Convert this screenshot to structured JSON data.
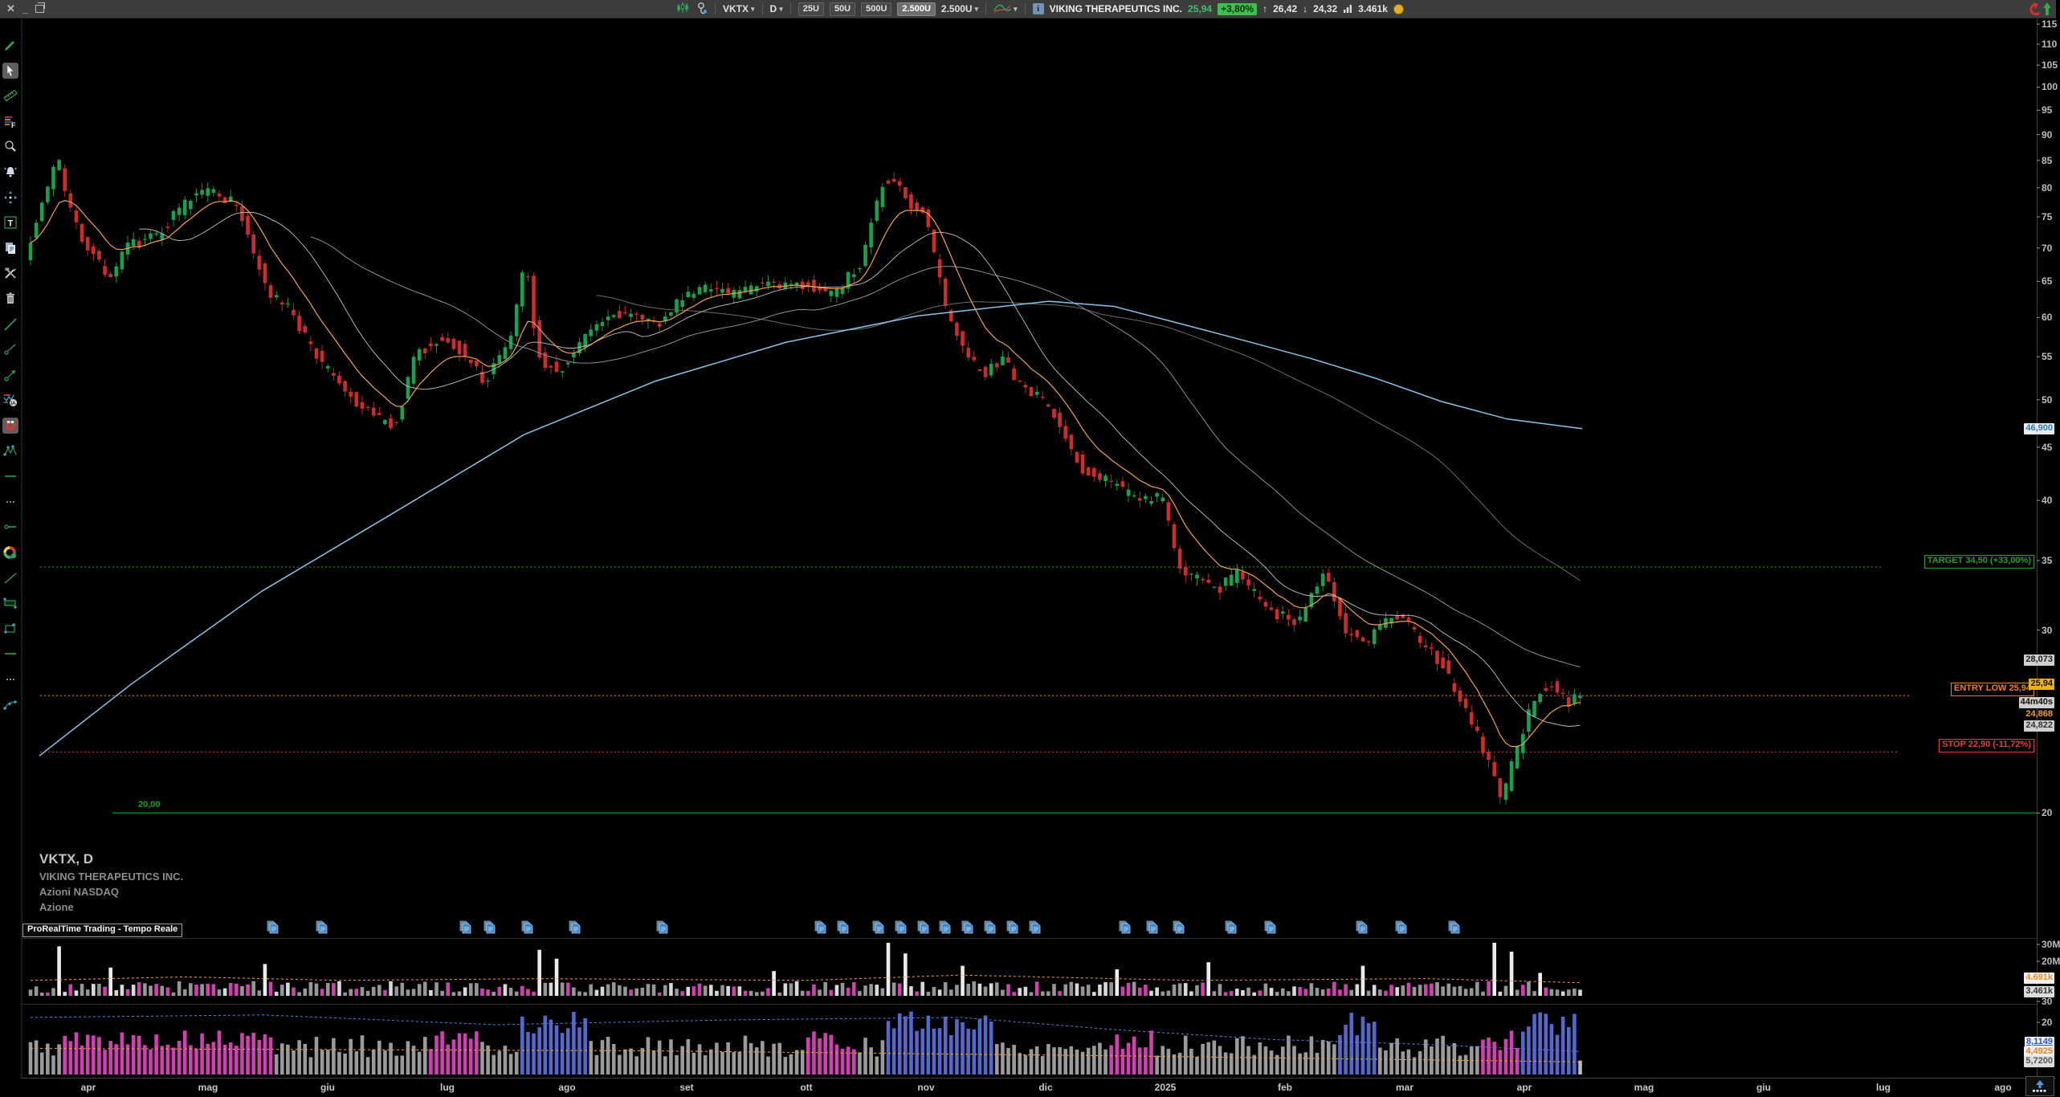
{
  "topbar": {
    "controls": {
      "close": "✕",
      "minimize": "_"
    },
    "symbol": "VKTX",
    "timeframe": "D",
    "unit_buttons": [
      "25U",
      "50U",
      "500U"
    ],
    "unit_selected": "2.500U",
    "unit_dropdown": "2.500U",
    "info_glyph": "i",
    "instrument_name": "VIKING THERAPEUTICS INC.",
    "last_price": "25,94",
    "change_pct": "+3,80%",
    "up_glyph": "↑",
    "day_high": "26,42",
    "down_glyph": "↓",
    "day_low": "24,32",
    "volume": "3.461k",
    "icons": [
      "candlestick-icon",
      "screener-icon",
      "chart-style-icon",
      "info-icon",
      "volume-bars-icon",
      "market-status-icon",
      "sell-arrow-icon",
      "buy-arrow-icon"
    ],
    "colors": {
      "up_green": "#3ebf4e",
      "last_green": "#3ec06c",
      "status_yellow": "#e3af24"
    }
  },
  "sidebar": {
    "tools": [
      "draw-pencil",
      "select-cursor",
      "measure-ruler",
      "orders-panel",
      "zoom",
      "alerts-bell",
      "pan-move",
      "text-note",
      "duplicate",
      "settings-tools",
      "delete-trash",
      "trend-line",
      "segment",
      "arrow-line",
      "ai-analysis",
      "magnet-snap",
      "zigzag-points",
      "horizontal-line",
      "more-options",
      "horizontal-segment",
      "color-palette",
      "oblique-line",
      "price-range",
      "rectangle",
      "horizontal-line-2",
      "more-options-2",
      "arc"
    ],
    "selected": [
      1,
      15
    ]
  },
  "chart": {
    "instrument_block": {
      "line1": "VKTX, D",
      "line2": "VIKING THERAPEUTICS INC.",
      "line3": "Azioni NASDAQ",
      "line4": "Azione"
    },
    "platform_label": "ProRealTime Trading - Tempo Reale",
    "levels": {
      "target": {
        "label": "TARGET 34,50 (+33,00%)",
        "price": 34.5,
        "color": "#21a121"
      },
      "entry": {
        "label": "ENTRY LOW 25,94",
        "price": 25.94,
        "color": "#f07d1e"
      },
      "stop": {
        "label": "STOP 22,90 (-11,72%)",
        "price": 22.9,
        "color": "#e23c3c"
      },
      "support": {
        "label": "20,00",
        "price": 20.0,
        "color": "#15a015"
      }
    },
    "axis_tags": {
      "ma200_value": "46,900",
      "upper_value": "28,073",
      "entry_price": "25,94",
      "countdown": "44m40s",
      "prev_value": "24,868",
      "lower_value": "24,822",
      "vol_ma": "4.691k",
      "vol_current": "3.461k",
      "p2_blue": "8,1149",
      "p2_orange": "4,4925",
      "p2_gray": "5,7200"
    },
    "corner_more": "⋯",
    "corner_chev": "▾"
  },
  "chart_data": {
    "type": "candlestick",
    "instrument": "VKTX",
    "timeframe": "daily",
    "scale": "log",
    "ylim": [
      15,
      118
    ],
    "y_ticks": [
      115,
      110,
      105,
      100,
      95,
      90,
      85,
      80,
      75,
      70,
      65,
      60,
      55,
      50,
      45,
      40,
      35,
      30,
      20
    ],
    "months": [
      {
        "label": "apr",
        "x": 110
      },
      {
        "label": "mag",
        "x": 259
      },
      {
        "label": "giu",
        "x": 408
      },
      {
        "label": "lug",
        "x": 557
      },
      {
        "label": "ago",
        "x": 706
      },
      {
        "label": "set",
        "x": 855
      },
      {
        "label": "ott",
        "x": 1004
      },
      {
        "label": "nov",
        "x": 1153
      },
      {
        "label": "dic",
        "x": 1302
      },
      {
        "label": "2025",
        "x": 1451
      },
      {
        "label": "feb",
        "x": 1600
      },
      {
        "label": "mar",
        "x": 1749
      },
      {
        "label": "apr",
        "x": 1898
      },
      {
        "label": "mag",
        "x": 2047
      },
      {
        "label": "giu",
        "x": 2196
      },
      {
        "label": "lug",
        "x": 2345
      },
      {
        "label": "ago",
        "x": 2494
      }
    ],
    "price_anchors": [
      [
        38,
        69
      ],
      [
        62,
        78
      ],
      [
        78,
        86
      ],
      [
        98,
        74
      ],
      [
        147,
        65
      ],
      [
        163,
        70
      ],
      [
        200,
        72
      ],
      [
        245,
        78
      ],
      [
        269,
        80
      ],
      [
        302,
        77
      ],
      [
        343,
        63
      ],
      [
        367,
        61
      ],
      [
        408,
        54
      ],
      [
        441,
        50.5
      ],
      [
        473,
        48
      ],
      [
        500,
        47
      ],
      [
        522,
        55
      ],
      [
        555,
        57.5
      ],
      [
        579,
        56
      ],
      [
        612,
        52
      ],
      [
        645,
        58
      ],
      [
        661,
        69
      ],
      [
        677,
        55
      ],
      [
        702,
        53
      ],
      [
        734,
        57.5
      ],
      [
        767,
        60
      ],
      [
        800,
        61
      ],
      [
        824,
        58.5
      ],
      [
        849,
        62
      ],
      [
        881,
        64.5
      ],
      [
        914,
        63
      ],
      [
        947,
        64.5
      ],
      [
        979,
        64
      ],
      [
        1012,
        64.5
      ],
      [
        1044,
        63
      ],
      [
        1077,
        67.5
      ],
      [
        1102,
        79
      ],
      [
        1110,
        82
      ],
      [
        1118,
        81
      ],
      [
        1142,
        77
      ],
      [
        1159,
        75
      ],
      [
        1183,
        62
      ],
      [
        1208,
        55
      ],
      [
        1232,
        53
      ],
      [
        1257,
        54.5
      ],
      [
        1281,
        51
      ],
      [
        1306,
        50
      ],
      [
        1330,
        46.5
      ],
      [
        1355,
        43
      ],
      [
        1379,
        42
      ],
      [
        1403,
        41
      ],
      [
        1428,
        40
      ],
      [
        1452,
        40.5
      ],
      [
        1477,
        34.5
      ],
      [
        1501,
        33.5
      ],
      [
        1526,
        33
      ],
      [
        1550,
        34
      ],
      [
        1575,
        32
      ],
      [
        1599,
        31
      ],
      [
        1624,
        30.5
      ],
      [
        1648,
        33.5
      ],
      [
        1656,
        34.5
      ],
      [
        1681,
        30
      ],
      [
        1705,
        29
      ],
      [
        1730,
        30.5
      ],
      [
        1754,
        31
      ],
      [
        1779,
        29
      ],
      [
        1803,
        27.8
      ],
      [
        1820,
        26
      ],
      [
        1836,
        24.8
      ],
      [
        1860,
        22.5
      ],
      [
        1877,
        20.6
      ],
      [
        1893,
        22.7
      ],
      [
        1909,
        24.8
      ],
      [
        1926,
        26.3
      ],
      [
        1942,
        26.6
      ],
      [
        1958,
        25.5
      ],
      [
        1966,
        25.94
      ]
    ],
    "ma200_anchors": [
      [
        49,
        22.7
      ],
      [
        163,
        26.6
      ],
      [
        326,
        32.7
      ],
      [
        490,
        38.9
      ],
      [
        653,
        46.3
      ],
      [
        816,
        52.1
      ],
      [
        979,
        56.8
      ],
      [
        1142,
        60.2
      ],
      [
        1306,
        62.2
      ],
      [
        1387,
        61.5
      ],
      [
        1469,
        59.2
      ],
      [
        1550,
        57
      ],
      [
        1632,
        54.8
      ],
      [
        1714,
        52.4
      ],
      [
        1795,
        49.8
      ],
      [
        1877,
        47.9
      ],
      [
        1970,
        46.9
      ]
    ],
    "last_close": 25.94,
    "volume_pane": {
      "ticks": [
        {
          "label": "30M",
          "y": 1169
        },
        {
          "label": "20M",
          "y": 1190
        }
      ],
      "spikes": [
        [
          0.02,
          28
        ],
        [
          0.05,
          16
        ],
        [
          0.15,
          18
        ],
        [
          0.33,
          26
        ],
        [
          0.34,
          21
        ],
        [
          0.48,
          14
        ],
        [
          0.555,
          30
        ],
        [
          0.565,
          24
        ],
        [
          0.6,
          17
        ],
        [
          0.7,
          15
        ],
        [
          0.76,
          19
        ],
        [
          0.86,
          17
        ],
        [
          0.945,
          30
        ],
        [
          0.955,
          25
        ],
        [
          0.975,
          13
        ]
      ],
      "ma_line": [
        [
          0,
          6
        ],
        [
          0.1,
          8
        ],
        [
          0.2,
          6
        ],
        [
          0.33,
          7
        ],
        [
          0.5,
          6
        ],
        [
          0.6,
          9
        ],
        [
          0.75,
          6
        ],
        [
          0.9,
          7
        ],
        [
          1,
          4.69
        ]
      ],
      "last_volume_m": 3.46
    },
    "indicator_pane": {
      "ticks": [
        {
          "label": "30",
          "y": 1240
        },
        {
          "label": "20",
          "y": 1266
        }
      ],
      "blue_clusters": [
        [
          0.315,
          0.36
        ],
        [
          0.55,
          0.62
        ],
        [
          0.845,
          0.868
        ],
        [
          0.962,
          1.0
        ]
      ],
      "magenta_clusters": [
        [
          0.02,
          0.155
        ],
        [
          0.255,
          0.29
        ],
        [
          0.5,
          0.535
        ],
        [
          0.695,
          0.725
        ],
        [
          0.935,
          0.96
        ]
      ],
      "blue_line": [
        [
          0,
          22
        ],
        [
          0.15,
          23
        ],
        [
          0.3,
          19
        ],
        [
          0.45,
          21
        ],
        [
          0.6,
          22
        ],
        [
          0.7,
          17
        ],
        [
          0.8,
          13
        ],
        [
          0.9,
          11
        ],
        [
          1,
          8.11
        ]
      ],
      "orange_line": [
        [
          0,
          10
        ],
        [
          0.4,
          9
        ],
        [
          0.7,
          7
        ],
        [
          1,
          4.49
        ]
      ],
      "last_value": 5.7
    },
    "news_marker_x": [
      336,
      397,
      576,
      606,
      653,
      712,
      821,
      1018,
      1046,
      1090,
      1118,
      1146,
      1173,
      1201,
      1229,
      1257,
      1285,
      1397,
      1431,
      1464,
      1529,
      1578,
      1692,
      1741,
      1807
    ],
    "colors": {
      "candle_up": "#17a24e",
      "candle_down": "#cf2b2b",
      "ma_fast": "#f2a33c",
      "ma_slow": "#86c5e8",
      "ma_gray": "#8f8f8f",
      "vol_magenta": "#d33fb3",
      "bar_blue": "#5268cc",
      "bar_gray": "#9a9a9a"
    }
  }
}
